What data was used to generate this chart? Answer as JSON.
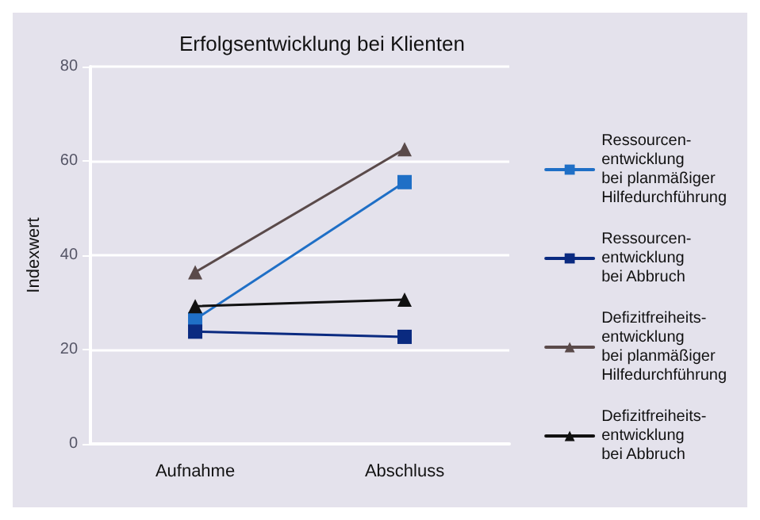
{
  "chart_data": {
    "type": "line",
    "title": "Erfolgsentwicklung bei Klienten",
    "ylabel": "Indexwert",
    "categories": [
      "Aufnahme",
      "Abschluss"
    ],
    "series": [
      {
        "name": "Ressourcen-\nentwicklung\nbei planmäßiger\nHilfedurchführung",
        "color": "#1f6fc6",
        "marker": "square",
        "values": [
          26.4,
          55.5
        ]
      },
      {
        "name": "Ressourcen-\nentwicklung\nbei Abbruch",
        "color": "#0a2a80",
        "marker": "square",
        "values": [
          23.8,
          22.7
        ]
      },
      {
        "name": "Defizitfreiheits-\nentwicklung\nbei planmäßiger\nHilfedurchführung",
        "color": "#5a4a4a",
        "marker": "triangle",
        "values": [
          36.4,
          62.5
        ]
      },
      {
        "name": "Defizitfreiheits-\nentwicklung\nbei Abbruch",
        "color": "#111111",
        "marker": "triangle",
        "values": [
          29.2,
          30.6
        ]
      }
    ],
    "ylim": [
      0,
      80
    ],
    "yticks": [
      0,
      20,
      40,
      60,
      80
    ],
    "grid": "y",
    "legend": "right",
    "line_style": "solid"
  }
}
